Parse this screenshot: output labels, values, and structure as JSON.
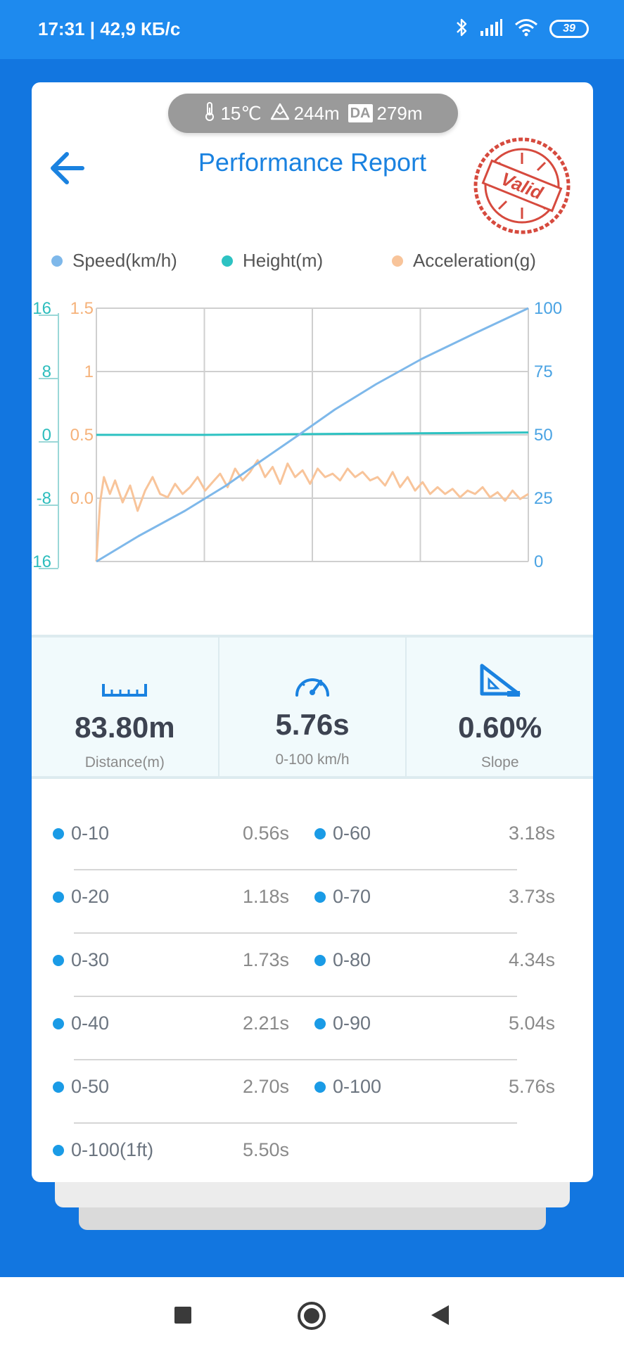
{
  "status_bar": {
    "time": "17:31 | 42,9 КБ/с",
    "battery": "39",
    "icons": [
      "bluetooth-icon",
      "signal-icon",
      "wifi-icon",
      "battery-icon"
    ]
  },
  "environment": {
    "temperature": "15℃",
    "altitude": "244m",
    "da_badge": "DA",
    "density_altitude": "279m"
  },
  "header": {
    "title": "Performance Report",
    "stamp_text": "Valid"
  },
  "legend": {
    "speed": "Speed(km/h)",
    "height": "Height(m)",
    "acceleration": "Acceleration(g)"
  },
  "colors": {
    "speed": "#7eb8ea",
    "height": "#2dc2c2",
    "acceleration": "#f8c49a",
    "accent": "#1a82e0",
    "background": "#1276e0"
  },
  "chart_data": {
    "type": "line",
    "axes": {
      "height_axis": {
        "ticks": [
          "16",
          "8",
          "0",
          "-8",
          "-16"
        ],
        "range": [
          -16,
          16
        ]
      },
      "acceleration_axis": {
        "ticks": [
          "1.5",
          "1",
          "0.5",
          "0.0"
        ],
        "range": [
          0,
          1.5
        ]
      },
      "speed_axis": {
        "ticks": [
          "100",
          "75",
          "50",
          "25",
          "0"
        ],
        "range": [
          0,
          100
        ]
      }
    },
    "x_range": [
      0,
      5.76
    ],
    "grid": true,
    "legend_position": "top",
    "series": [
      {
        "name": "Speed(km/h)",
        "axis": "speed_axis",
        "x": [
          0,
          0.56,
          1.18,
          1.73,
          2.21,
          2.7,
          3.18,
          3.73,
          4.34,
          5.04,
          5.76
        ],
        "y": [
          0,
          10,
          20,
          30,
          40,
          50,
          60,
          70,
          80,
          90,
          100
        ]
      },
      {
        "name": "Height(m)",
        "axis": "height_axis",
        "x": [
          0,
          1.44,
          2.88,
          4.32,
          5.76
        ],
        "y": [
          0,
          0,
          0.1,
          0.2,
          0.3
        ]
      },
      {
        "name": "Acceleration(g)",
        "axis": "acceleration_axis",
        "x": [
          0,
          0.05,
          0.1,
          0.18,
          0.25,
          0.35,
          0.45,
          0.55,
          0.65,
          0.75,
          0.85,
          0.95,
          1.05,
          1.15,
          1.25,
          1.35,
          1.45,
          1.55,
          1.65,
          1.75,
          1.85,
          1.95,
          2.05,
          2.15,
          2.25,
          2.35,
          2.45,
          2.55,
          2.65,
          2.75,
          2.85,
          2.95,
          3.05,
          3.15,
          3.25,
          3.35,
          3.45,
          3.55,
          3.65,
          3.75,
          3.85,
          3.95,
          4.05,
          4.15,
          4.25,
          4.35,
          4.45,
          4.55,
          4.65,
          4.75,
          4.85,
          4.95,
          5.05,
          5.15,
          5.25,
          5.35,
          5.45,
          5.55,
          5.65,
          5.76
        ],
        "y": [
          0.0,
          0.35,
          0.5,
          0.4,
          0.48,
          0.35,
          0.45,
          0.3,
          0.42,
          0.5,
          0.4,
          0.38,
          0.46,
          0.4,
          0.44,
          0.5,
          0.42,
          0.47,
          0.52,
          0.44,
          0.55,
          0.48,
          0.53,
          0.6,
          0.5,
          0.56,
          0.46,
          0.58,
          0.5,
          0.54,
          0.46,
          0.55,
          0.5,
          0.52,
          0.48,
          0.55,
          0.5,
          0.53,
          0.48,
          0.5,
          0.45,
          0.53,
          0.44,
          0.5,
          0.42,
          0.47,
          0.4,
          0.44,
          0.4,
          0.43,
          0.38,
          0.42,
          0.4,
          0.44,
          0.38,
          0.41,
          0.36,
          0.42,
          0.37,
          0.4
        ]
      }
    ]
  },
  "stats": [
    {
      "icon": "ruler-icon",
      "value": "83.80m",
      "label": "Distance(m)"
    },
    {
      "icon": "speedometer-icon",
      "value": "5.76s",
      "label": "0-100 km/h"
    },
    {
      "icon": "slope-icon",
      "value": "0.60%",
      "label": "Slope"
    }
  ],
  "splits": [
    {
      "left": {
        "label": "0-10",
        "value": "0.56s"
      },
      "right": {
        "label": "0-60",
        "value": "3.18s"
      }
    },
    {
      "left": {
        "label": "0-20",
        "value": "1.18s"
      },
      "right": {
        "label": "0-70",
        "value": "3.73s"
      }
    },
    {
      "left": {
        "label": "0-30",
        "value": "1.73s"
      },
      "right": {
        "label": "0-80",
        "value": "4.34s"
      }
    },
    {
      "left": {
        "label": "0-40",
        "value": "2.21s"
      },
      "right": {
        "label": "0-90",
        "value": "5.04s"
      }
    },
    {
      "left": {
        "label": "0-50",
        "value": "2.70s"
      },
      "right": {
        "label": "0-100",
        "value": "5.76s"
      }
    },
    {
      "left": {
        "label": "0-100(1ft)",
        "value": "5.50s"
      }
    }
  ],
  "nav": {
    "icons": [
      "recents-button",
      "home-button",
      "back-button"
    ]
  }
}
